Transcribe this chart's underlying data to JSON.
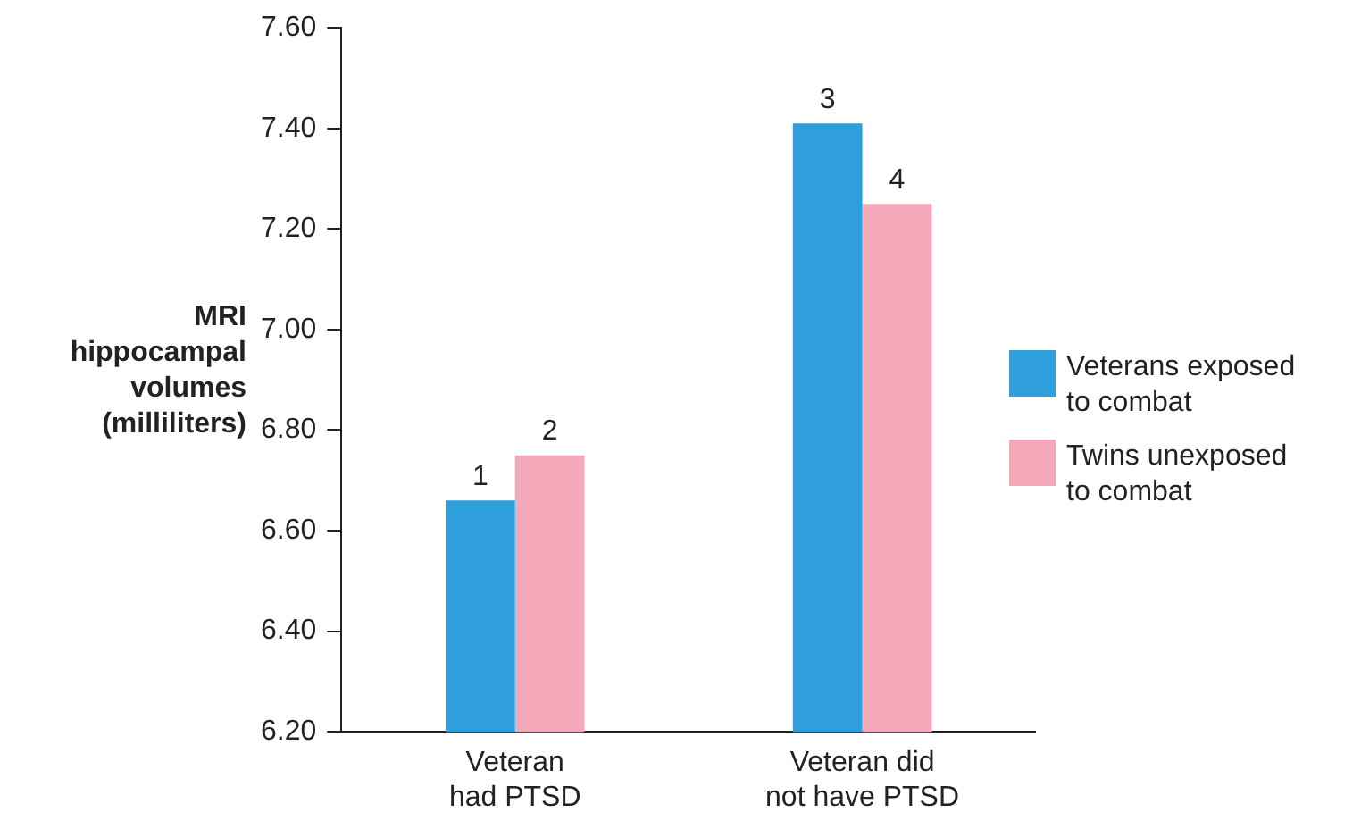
{
  "chart_data": {
    "type": "bar",
    "ylabel": "MRI hippocampal volumes (milliliters)",
    "categories": [
      "Veteran\nhad PTSD",
      "Veteran did\nnot have PTSD"
    ],
    "series": [
      {
        "name": "Veterans exposed to combat",
        "color": "#2e9fdb",
        "values": [
          6.66,
          7.41
        ]
      },
      {
        "name": "Twins unexposed to combat",
        "color": "#f4a9bb",
        "values": [
          6.75,
          7.25
        ]
      }
    ],
    "annotations": [
      {
        "text": "1",
        "x": "Veteran\nhad PTSD",
        "y": 6.66
      },
      {
        "text": "2",
        "x": "Veteran\nhad PTSD",
        "y": 6.75
      },
      {
        "text": "3",
        "x": "Veteran did\nnot have PTSD",
        "y": 7.41
      },
      {
        "text": "4",
        "x": "Veteran did\nnot have PTSD",
        "y": 7.25
      }
    ],
    "ylim": [
      6.2,
      7.6
    ],
    "yticks": [
      {
        "value": 6.2,
        "label": "6.20"
      },
      {
        "value": 6.4,
        "label": "6.40"
      },
      {
        "value": 6.6,
        "label": "6.60"
      },
      {
        "value": 6.8,
        "label": "6.80"
      },
      {
        "value": 7.0,
        "label": "7.00"
      },
      {
        "value": 7.2,
        "label": "7.20"
      },
      {
        "value": 7.4,
        "label": "7.40"
      },
      {
        "value": 7.6,
        "label": "7.60"
      }
    ],
    "grid": false,
    "legend": "right"
  }
}
